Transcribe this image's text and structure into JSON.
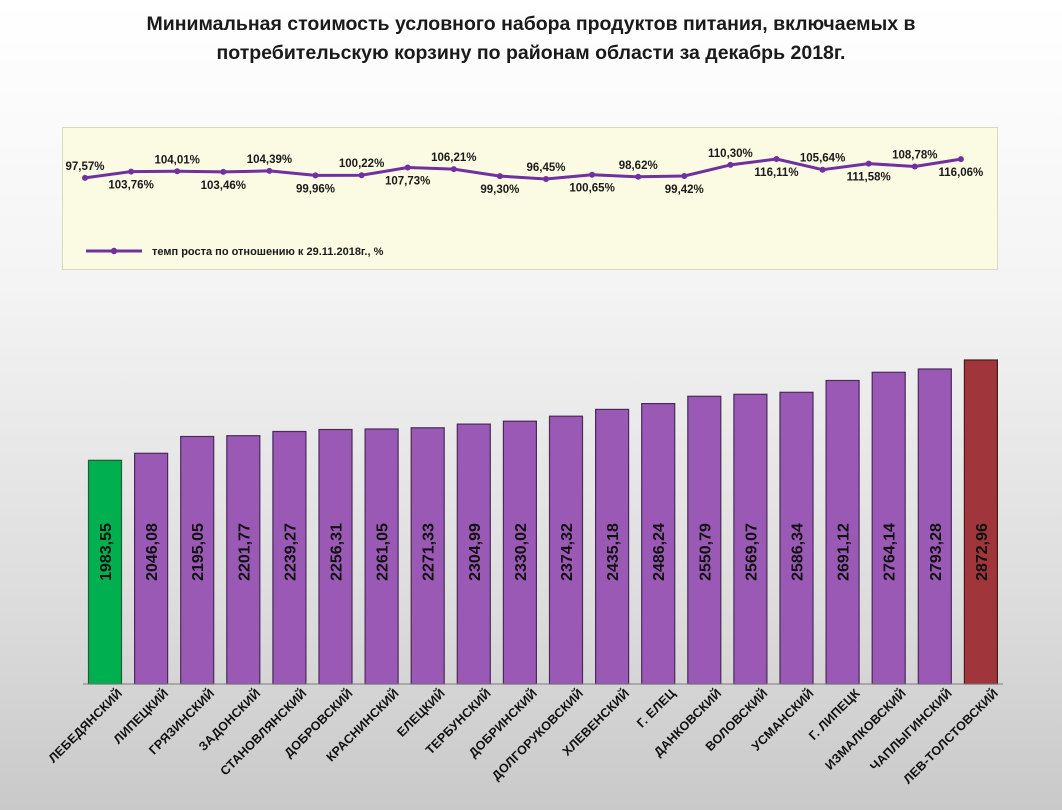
{
  "title": "Минимальная стоимость условного набора продуктов питания, включаемых в потребительскую корзину  по районам области  за декабрь 2018г.",
  "chart_data": [
    {
      "type": "line",
      "title": "",
      "series": [
        {
          "name": "темп роста по отношению к 29.11.2018г.,  %",
          "values": [
            97.57,
            103.76,
            104.01,
            103.46,
            104.39,
            99.96,
            100.22,
            107.73,
            106.21,
            99.3,
            96.45,
            100.65,
            98.62,
            99.42,
            110.3,
            116.11,
            105.64,
            111.58,
            108.78,
            116.06
          ],
          "labels": [
            "97,57%",
            "103,76%",
            "104,01%",
            "103,46%",
            "104,39%",
            "99,96%",
            "100,22%",
            "107,73%",
            "106,21%",
            "99,30%",
            "96,45%",
            "100,65%",
            "98,62%",
            "99,42%",
            "110,30%",
            "116,11%",
            "105,64%",
            "111,58%",
            "108,78%",
            "116,06%"
          ],
          "color": "#7030a0"
        }
      ],
      "legend": "bottom-left"
    },
    {
      "type": "bar",
      "title": "",
      "xlabel": "",
      "ylabel": "",
      "ylim": [
        0,
        2872.96
      ],
      "categories": [
        "ЛЕБЕДЯНСКИЙ",
        "ЛИПЕЦКИЙ",
        "ГРЯЗИНСКИЙ",
        "ЗАДОНСКИЙ",
        "СТАНОВЛЯНСКИЙ",
        "ДОБРОВСКИЙ",
        "КРАСНИНСКИЙ",
        "ЕЛЕЦКИЙ",
        "ТЕРБУНСКИЙ",
        "ДОБРИНСКИЙ",
        "ДОЛГОРУКОВСКИЙ",
        "ХЛЕВЕНСКИЙ",
        "Г. ЕЛЕЦ",
        "ДАНКОВСКИЙ",
        "ВОЛОВСКИЙ",
        "УСМАНСКИЙ",
        "Г. ЛИПЕЦК",
        "ИЗМАЛКОВСКИЙ",
        "ЧАПЛЫГИНСКИЙ",
        "ЛЕВ-ТОЛСТОВСКИЙ"
      ],
      "values": [
        1983.55,
        2046.08,
        2195.05,
        2201.77,
        2239.27,
        2256.31,
        2261.05,
        2271.33,
        2304.99,
        2330.02,
        2374.32,
        2435.18,
        2486.24,
        2550.79,
        2569.07,
        2586.34,
        2691.12,
        2764.14,
        2793.28,
        2872.96
      ],
      "labels": [
        "1983,55",
        "2046,08",
        "2195,05",
        "2201,77",
        "2239,27",
        "2256,31",
        "2261,05",
        "2271,33",
        "2304,99",
        "2330,02",
        "2374,32",
        "2435,18",
        "2486,24",
        "2550,79",
        "2569,07",
        "2586,34",
        "2691,12",
        "2764,14",
        "2793,28",
        "2872,96"
      ],
      "colors": {
        "default": "#9b59b6",
        "minimum": "#00b050",
        "maximum": "#a0363b"
      }
    }
  ]
}
